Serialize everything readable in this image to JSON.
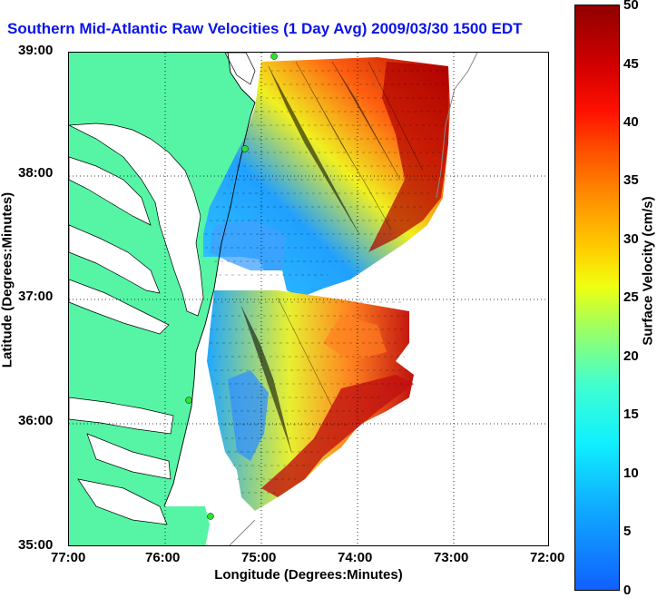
{
  "title": "Southern Mid-Atlantic Raw Velocities (1 Day Avg) 2009/03/30 1500 EDT",
  "map": {
    "xlabel": "Longitude (Degrees:Minutes)",
    "ylabel": "Latitude (Degrees:Minutes)",
    "x_ticks": [
      "77:00",
      "76:00",
      "75:00",
      "74:00",
      "73:00",
      "72:00"
    ],
    "y_ticks": [
      "39:00",
      "38:00",
      "37:00",
      "36:00",
      "35:00"
    ],
    "lon_range": [
      -77,
      -72
    ],
    "lat_range": [
      35,
      39
    ],
    "grid": "dotted",
    "colors": {
      "land": "#55f5a5",
      "water": "#ffffff",
      "arrows": "#000000",
      "coast": "#000000",
      "stations": "#30e030"
    }
  },
  "colorbar": {
    "label": "Surface Velocity (cm/s)",
    "ticks": [
      "0",
      "5",
      "10",
      "15",
      "20",
      "25",
      "30",
      "35",
      "40",
      "45",
      "50"
    ],
    "range": [
      0,
      50
    ],
    "colormap": "jet"
  }
}
